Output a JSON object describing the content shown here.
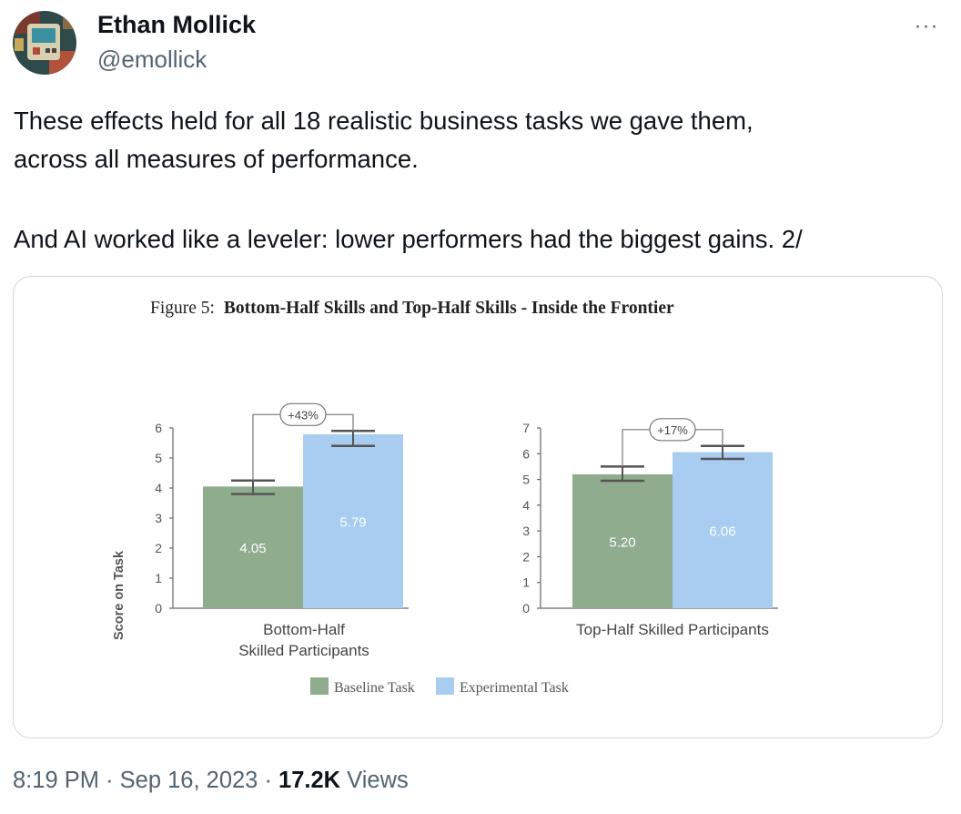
{
  "author": {
    "name": "Ethan Mollick",
    "handle": "@emollick"
  },
  "menu": {
    "more_icon": "ellipsis-icon",
    "label": "···"
  },
  "tweet": {
    "line1": "These effects held for all 18 realistic business tasks we gave them,",
    "line2": "across all measures of performance.",
    "line3": "And AI worked like a leveler: lower performers had the biggest gains. 2/"
  },
  "figure": {
    "prefix": "Figure 5:",
    "title": "Bottom-Half Skills and Top-Half Skills - Inside the Frontier",
    "ylabel": "Score on Task",
    "legend": [
      "Baseline Task",
      "Experimental Task"
    ],
    "colors": {
      "baseline": "#8fac8e",
      "experimental": "#a8cdf0"
    }
  },
  "chart_data": [
    {
      "type": "bar",
      "categories": [
        "Bottom-Half Skilled Participants"
      ],
      "xlabel_lines": [
        "Bottom-Half",
        "Skilled Participants"
      ],
      "ylabel": "Score on Task",
      "ylim": [
        0,
        6
      ],
      "yticks": [
        "0",
        "1",
        "2",
        "3",
        "4",
        "5",
        "6"
      ],
      "series": [
        {
          "name": "Baseline Task",
          "values": [
            4.05
          ],
          "err_low": 3.8,
          "err_high": 4.25
        },
        {
          "name": "Experimental Task",
          "values": [
            5.79
          ],
          "err_low": 5.4,
          "err_high": 5.9
        }
      ],
      "value_labels": [
        "4.05",
        "5.79"
      ],
      "annotation": "+43%"
    },
    {
      "type": "bar",
      "categories": [
        "Top-Half Skilled Participants"
      ],
      "xlabel_lines": [
        "Top-Half Skilled Participants"
      ],
      "ylim": [
        0,
        7
      ],
      "yticks": [
        "0",
        "1",
        "2",
        "3",
        "4",
        "5",
        "6",
        "7"
      ],
      "series": [
        {
          "name": "Baseline Task",
          "values": [
            5.2
          ],
          "err_low": 4.95,
          "err_high": 5.5
        },
        {
          "name": "Experimental Task",
          "values": [
            6.06
          ],
          "err_low": 5.8,
          "err_high": 6.3
        }
      ],
      "value_labels": [
        "5.20",
        "6.06"
      ],
      "annotation": "+17%"
    }
  ],
  "footer": {
    "time": "8:19 PM",
    "date": "Sep 16, 2023",
    "views_count": "17.2K",
    "views_label": "Views"
  }
}
